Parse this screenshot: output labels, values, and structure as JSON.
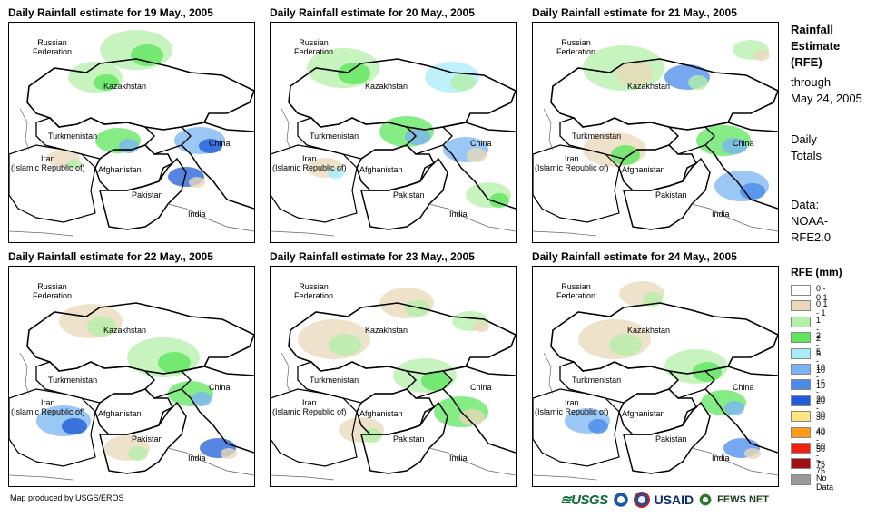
{
  "panels": [
    {
      "title": "Daily Rainfall estimate for 19 May., 2005"
    },
    {
      "title": "Daily Rainfall estimate for 20 May., 2005"
    },
    {
      "title": "Daily Rainfall estimate for 21 May., 2005"
    },
    {
      "title": "Daily Rainfall estimate for 22 May., 2005"
    },
    {
      "title": "Daily Rainfall estimate for 23 May., 2005"
    },
    {
      "title": "Daily Rainfall estimate for 24 May., 2005"
    }
  ],
  "map_labels": {
    "russia_line1": "Russian",
    "russia_line2": "Federation",
    "kazakhstan": "Kazakhstan",
    "turkmenistan": "Turkmenistan",
    "iran_line1": "Iran",
    "iran_line2": "(Islamic Republic of)",
    "afghanistan": "Afghanistan",
    "pakistan": "Pakistan",
    "china": "China",
    "india": "India"
  },
  "side": {
    "title_lines": [
      "Rainfall",
      "Estimate",
      "(RFE)"
    ],
    "through_line1": "through",
    "through_line2": "May 24, 2005",
    "daily_line1": "Daily",
    "daily_line2": "Totals",
    "data_line1": "Data:",
    "data_line2": "NOAA-",
    "data_line3": "RFE2.0"
  },
  "legend": {
    "title": "RFE (mm)",
    "items": [
      {
        "label": "0 - 0.1",
        "color": "#ffffff"
      },
      {
        "label": "0.1 - 1",
        "color": "#e8d8b8"
      },
      {
        "label": "1 - 2",
        "color": "#b4f0a8"
      },
      {
        "label": "2 - 5",
        "color": "#5ee65e"
      },
      {
        "label": "5 - 10",
        "color": "#a8ecf8"
      },
      {
        "label": "10 - 15",
        "color": "#7ab4f2"
      },
      {
        "label": "15 - 20",
        "color": "#4a8ae8"
      },
      {
        "label": "20 - 30",
        "color": "#1f5ed8"
      },
      {
        "label": "30 - 40",
        "color": "#ffe680"
      },
      {
        "label": "40 - 50",
        "color": "#ff9a1a"
      },
      {
        "label": "50 - 75",
        "color": "#f02010"
      },
      {
        "label": "> 75",
        "color": "#a01010"
      },
      {
        "label": "No Data",
        "color": "#999999"
      }
    ]
  },
  "footer": {
    "credit": "Map produced by USGS/EROS"
  },
  "logos": {
    "usgs": "≊USGS",
    "usaid": "USAID",
    "fews": "FEWS NET"
  }
}
